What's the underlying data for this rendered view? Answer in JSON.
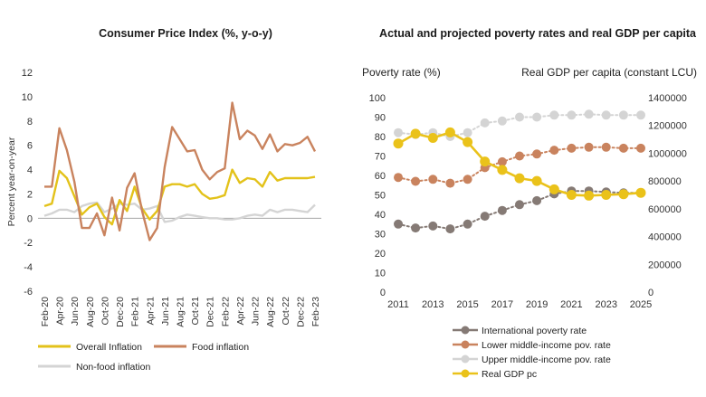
{
  "colors": {
    "overall": "#E3C21A",
    "food": "#C9835E",
    "nonfood": "#D4D4D4",
    "international": "#857A75",
    "lower_middle": "#C9835E",
    "upper_middle": "#D4D4D4",
    "gdp": "#EAC21A",
    "axis_text": "#333333"
  },
  "chart_data": [
    {
      "type": "line",
      "title": "Consumer Price Index (%, y-o-y)",
      "ylabel": "Percent year-on-year",
      "xlabel": "",
      "ylim": [
        -6,
        12
      ],
      "yticks": [
        -6,
        -4,
        -2,
        0,
        2,
        4,
        6,
        8,
        10,
        12
      ],
      "grid": false,
      "legend_position": "bottom",
      "x": [
        "Feb-20",
        "Mar-20",
        "Apr-20",
        "May-20",
        "Jun-20",
        "Jul-20",
        "Aug-20",
        "Sep-20",
        "Oct-20",
        "Nov-20",
        "Dec-20",
        "Jan-21",
        "Feb-21",
        "Mar-21",
        "Apr-21",
        "May-21",
        "Jun-21",
        "Jul-21",
        "Aug-21",
        "Sep-21",
        "Oct-21",
        "Nov-21",
        "Dec-21",
        "Jan-22",
        "Feb-22",
        "Mar-22",
        "Apr-22",
        "May-22",
        "Jun-22",
        "Jul-22",
        "Aug-22",
        "Sep-22",
        "Oct-22",
        "Nov-22",
        "Dec-22",
        "Jan-23",
        "Feb-23"
      ],
      "x_tick_labels": [
        "Feb-20",
        "Apr-20",
        "Jun-20",
        "Aug-20",
        "Oct-20",
        "Dec-20",
        "Feb-21",
        "Apr-21",
        "Jun-21",
        "Aug-21",
        "Oct-21",
        "Dec-21",
        "Feb-22",
        "Apr-22",
        "Jun-22",
        "Aug-22",
        "Oct-22",
        "Dec-22",
        "Feb-23"
      ],
      "series": [
        {
          "name": "Overall Inflation",
          "color_key": "overall",
          "values": [
            1.0,
            1.2,
            3.9,
            3.3,
            1.8,
            0.3,
            0.9,
            1.2,
            0.1,
            -0.5,
            1.5,
            0.6,
            2.6,
            0.8,
            -0.1,
            0.6,
            2.6,
            2.8,
            2.8,
            2.6,
            2.8,
            2.0,
            1.6,
            1.7,
            1.9,
            4.0,
            2.9,
            3.3,
            3.2,
            2.6,
            3.8,
            3.1,
            3.3,
            3.3,
            3.3,
            3.3,
            3.4
          ]
        },
        {
          "name": "Food inflation",
          "color_key": "food",
          "values": [
            2.6,
            2.6,
            7.4,
            5.6,
            3.0,
            -0.8,
            -0.8,
            0.4,
            -1.4,
            1.7,
            -1.0,
            2.5,
            3.7,
            0.6,
            -1.8,
            -0.8,
            4.2,
            7.5,
            6.5,
            5.5,
            5.6,
            4.0,
            3.2,
            3.8,
            4.1,
            9.5,
            6.5,
            7.2,
            6.8,
            5.7,
            6.9,
            5.5,
            6.1,
            6.0,
            6.2,
            6.7,
            5.5
          ]
        },
        {
          "name": "Non-food inflation",
          "color_key": "nonfood",
          "values": [
            0.2,
            0.4,
            0.7,
            0.7,
            0.5,
            1.0,
            1.2,
            1.3,
            0.5,
            0.8,
            1.2,
            1.1,
            1.2,
            0.7,
            0.8,
            1.0,
            -0.3,
            -0.2,
            0.1,
            0.3,
            0.2,
            0.1,
            0.0,
            0.0,
            -0.1,
            -0.1,
            0.0,
            0.2,
            0.3,
            0.2,
            0.7,
            0.5,
            0.7,
            0.7,
            0.6,
            0.5,
            1.1
          ]
        }
      ]
    },
    {
      "type": "line",
      "title": "Actual and projected poverty rates and real GDP per capita",
      "ylabel": "Poverty rate (%)",
      "ylabel_right": "Real GDP per capita (constant LCU)",
      "xlabel": "",
      "ylim": [
        0,
        100
      ],
      "yticks": [
        0,
        10,
        20,
        30,
        40,
        50,
        60,
        70,
        80,
        90,
        100
      ],
      "ylim_right": [
        0,
        1400000
      ],
      "yticks_right": [
        "0",
        "200000",
        "400000",
        "600000",
        "800000",
        "1000000",
        "1200000",
        "1400000"
      ],
      "grid": false,
      "legend_position": "bottom",
      "x": [
        2011,
        2012,
        2013,
        2014,
        2015,
        2016,
        2017,
        2018,
        2019,
        2020,
        2021,
        2022,
        2023,
        2024,
        2025
      ],
      "x_tick_labels": [
        "2011",
        "2013",
        "2015",
        "2017",
        "2019",
        "2021",
        "2023",
        "2025"
      ],
      "series": [
        {
          "name": "International poverty rate",
          "color_key": "international",
          "axis": "left",
          "values": [
            35.0,
            33.0,
            34.0,
            32.5,
            35.0,
            39.0,
            42.0,
            45.0,
            47.0,
            50.5,
            52.0,
            52.0,
            51.5,
            51.0,
            51.0
          ]
        },
        {
          "name": "Lower middle-income pov. rate",
          "color_key": "lower_middle",
          "axis": "left",
          "values": [
            59.0,
            57.0,
            58.0,
            56.0,
            58.0,
            64.0,
            67.0,
            70.0,
            71.0,
            73.0,
            74.0,
            74.5,
            74.5,
            74.0,
            74.0
          ]
        },
        {
          "name": "Upper middle-income pov. rate",
          "color_key": "upper_middle",
          "axis": "left",
          "values": [
            82.0,
            81.0,
            82.0,
            80.0,
            82.0,
            87.0,
            88.0,
            90.0,
            90.0,
            91.0,
            91.0,
            91.5,
            91.0,
            91.0,
            91.0
          ]
        },
        {
          "name": "Real GDP pc",
          "color_key": "gdp",
          "axis": "right",
          "values": [
            1070000,
            1140000,
            1110000,
            1150000,
            1080000,
            940000,
            880000,
            820000,
            800000,
            740000,
            700000,
            695000,
            700000,
            705000,
            715000
          ]
        }
      ]
    }
  ]
}
